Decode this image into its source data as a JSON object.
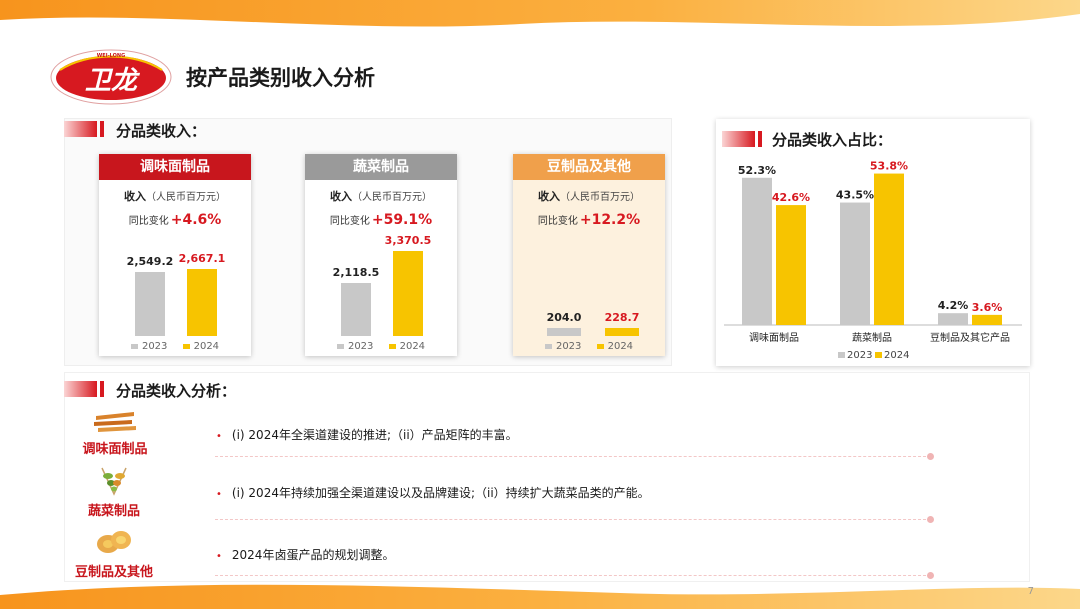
{
  "header": {
    "title": "按产品类别收入分析",
    "logo_text": "卫龙",
    "logo_subtext": "WEI-LONG"
  },
  "sections": {
    "category_revenue": "分品类收入：",
    "share": "分品类收入占比：",
    "analysis": "分品类收入分析："
  },
  "cards": [
    {
      "title": "调味面制品",
      "metric": "收入",
      "unit": "（人民币百万元）",
      "yoy_label": "同比变化",
      "yoy_value": "+4.6%",
      "label_2023": "2,549.2",
      "label_2024": "2,667.1",
      "value_2023": 2549.2,
      "value_2024": 2667.1,
      "legend_2023": "2023",
      "legend_2024": "2024"
    },
    {
      "title": "蔬菜制品",
      "metric": "收入",
      "unit": "（人民币百万元）",
      "yoy_label": "同比变化",
      "yoy_value": "+59.1%",
      "label_2023": "2,118.5",
      "label_2024": "3,370.5",
      "value_2023": 2118.5,
      "value_2024": 3370.5,
      "legend_2023": "2023",
      "legend_2024": "2024"
    },
    {
      "title": "豆制品及其他",
      "metric": "收入",
      "unit": "（人民币百万元）",
      "yoy_label": "同比变化",
      "yoy_value": "+12.2%",
      "label_2023": "204.0",
      "label_2024": "228.7",
      "value_2023": 204.0,
      "value_2024": 228.7,
      "legend_2023": "2023",
      "legend_2024": "2024"
    }
  ],
  "chart_data": {
    "type": "bar",
    "categories": [
      "调味面制品",
      "蔬菜制品",
      "豆制品及其它产品"
    ],
    "series": [
      {
        "name": "2023",
        "values": [
          52.3,
          43.5,
          4.2
        ],
        "labels": [
          "52.3%",
          "43.5%",
          "4.2%"
        ]
      },
      {
        "name": "2024",
        "values": [
          42.6,
          53.8,
          3.6
        ],
        "labels": [
          "42.6%",
          "53.8%",
          "3.6%"
        ]
      }
    ],
    "ylim": [
      0,
      60
    ],
    "grid": false,
    "legend": "bottom"
  },
  "analysis_rows": [
    {
      "category": "调味面制品",
      "text": "(i)  2024年全渠道建设的推进;（ii）产品矩阵的丰富。"
    },
    {
      "category": "蔬菜制品",
      "text": "(i)  2024年持续加强全渠道建设以及品牌建设;（ii）持续扩大蔬菜品类的产能。"
    },
    {
      "category": "豆制品及其他",
      "text": "2024年卤蛋产品的规划调整。"
    }
  ],
  "bullet": "•",
  "page_number": "7",
  "colors": {
    "brand_red": "#d71920",
    "gray_bar": "#c8c8c8",
    "yellow_bar": "#f7c400",
    "orange_header": "#f0a04b",
    "gray_header": "#9a9a9a"
  }
}
